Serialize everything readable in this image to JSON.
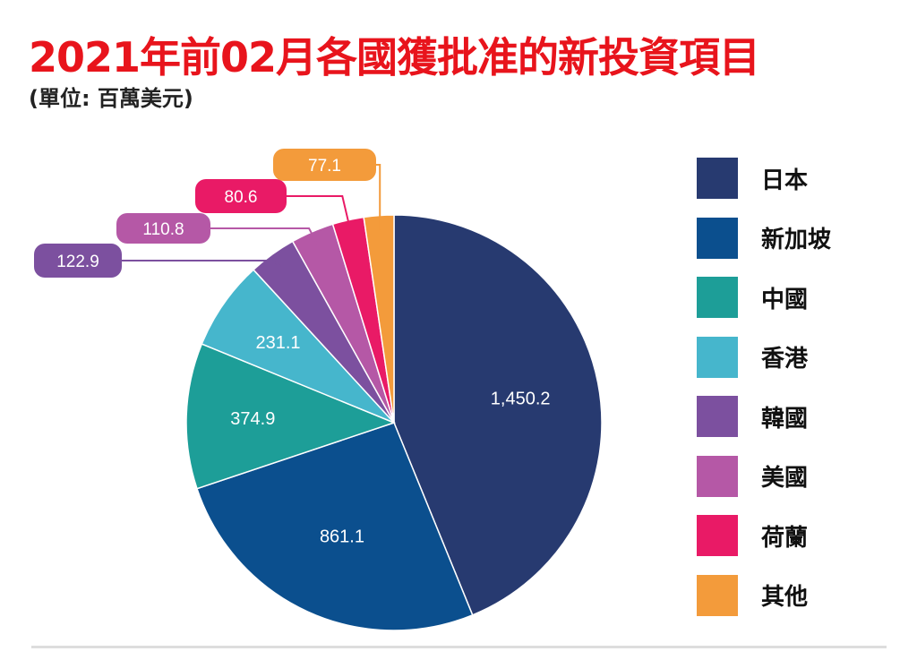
{
  "title": "2021年前02月各國獲批准的新投資項目",
  "subtitle": "(單位: 百萬美元)",
  "chart_data": {
    "type": "pie",
    "title": "2021年前02月各國獲批准的新投資項目",
    "unit": "百萬美元",
    "start": "top, clockwise",
    "legend_position": "right",
    "slices": [
      {
        "label": "日本",
        "value": 1450.2,
        "display": "1,450.2",
        "color": "#273a70"
      },
      {
        "label": "新加坡",
        "value": 861.1,
        "display": "861.1",
        "color": "#0b4f8e"
      },
      {
        "label": "中國",
        "value": 374.9,
        "display": "374.9",
        "color": "#1d9e98"
      },
      {
        "label": "香港",
        "value": 231.1,
        "display": "231.1",
        "color": "#46b6cc"
      },
      {
        "label": "韓國",
        "value": 122.9,
        "display": "122.9",
        "color": "#7c509f"
      },
      {
        "label": "美國",
        "value": 110.8,
        "display": "110.8",
        "color": "#b558a6"
      },
      {
        "label": "荷蘭",
        "value": 80.6,
        "display": "80.6",
        "color": "#e91a66"
      },
      {
        "label": "其他",
        "value": 77.1,
        "display": "77.1",
        "color": "#f39b3b"
      }
    ]
  }
}
